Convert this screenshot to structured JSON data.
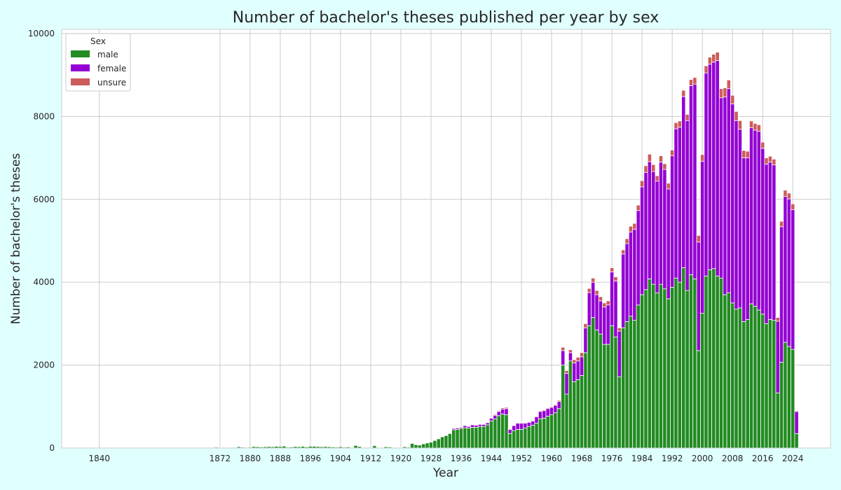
{
  "chart_data": {
    "type": "bar",
    "stacked": true,
    "title": "Number of bachelor's theses published per year by sex",
    "xlabel": "Year",
    "ylabel": "Number of bachelor's theses",
    "xlim": [
      1830,
      2034
    ],
    "ylim": [
      0,
      10100
    ],
    "x_ticks": [
      1840,
      1872,
      1880,
      1888,
      1896,
      1904,
      1912,
      1920,
      1928,
      1936,
      1944,
      1952,
      1960,
      1968,
      1976,
      1984,
      1992,
      2000,
      2008,
      2016,
      2024
    ],
    "y_ticks": [
      0,
      2000,
      4000,
      6000,
      8000,
      10000
    ],
    "grid": true,
    "legend": {
      "title": "Sex",
      "position": "top-left"
    },
    "colors": {
      "male": "#228b22",
      "female": "#9400d3",
      "unsure": "#cd5c5c",
      "background": "#e0ffff",
      "plot_background": "#ffffff",
      "grid": "#cccccc"
    },
    "categories": [
      1869,
      1870,
      1871,
      1872,
      1873,
      1874,
      1875,
      1876,
      1877,
      1878,
      1879,
      1880,
      1881,
      1882,
      1883,
      1884,
      1885,
      1886,
      1887,
      1888,
      1889,
      1890,
      1891,
      1892,
      1893,
      1894,
      1895,
      1896,
      1897,
      1898,
      1899,
      1900,
      1901,
      1902,
      1903,
      1904,
      1905,
      1906,
      1907,
      1908,
      1909,
      1910,
      1911,
      1912,
      1913,
      1914,
      1915,
      1916,
      1917,
      1918,
      1919,
      1920,
      1921,
      1922,
      1923,
      1924,
      1925,
      1926,
      1927,
      1928,
      1929,
      1930,
      1931,
      1932,
      1933,
      1934,
      1935,
      1936,
      1937,
      1938,
      1939,
      1940,
      1941,
      1942,
      1943,
      1944,
      1945,
      1946,
      1947,
      1948,
      1949,
      1950,
      1951,
      1952,
      1953,
      1954,
      1955,
      1956,
      1957,
      1958,
      1959,
      1960,
      1961,
      1962,
      1963,
      1964,
      1965,
      1966,
      1967,
      1968,
      1969,
      1970,
      1971,
      1972,
      1973,
      1974,
      1975,
      1976,
      1977,
      1978,
      1979,
      1980,
      1981,
      1982,
      1983,
      1984,
      1985,
      1986,
      1987,
      1988,
      1989,
      1990,
      1991,
      1992,
      1993,
      1994,
      1995,
      1996,
      1997,
      1998,
      1999,
      2000,
      2001,
      2002,
      2003,
      2004,
      2005,
      2006,
      2007,
      2008,
      2009,
      2010,
      2011,
      2012,
      2013,
      2014,
      2015,
      2016,
      2017,
      2018,
      2019,
      2020,
      2021,
      2022,
      2023,
      2024,
      2025
    ],
    "series": [
      {
        "name": "male",
        "values": [
          15,
          10,
          20,
          15,
          15,
          10,
          5,
          15,
          30,
          20,
          15,
          20,
          35,
          30,
          25,
          30,
          35,
          30,
          40,
          35,
          45,
          20,
          25,
          35,
          30,
          40,
          25,
          40,
          40,
          35,
          30,
          35,
          30,
          25,
          20,
          30,
          20,
          25,
          10,
          60,
          35,
          5,
          5,
          5,
          55,
          5,
          5,
          30,
          25,
          15,
          15,
          15,
          30,
          20,
          110,
          80,
          70,
          100,
          120,
          140,
          180,
          220,
          270,
          300,
          350,
          440,
          450,
          470,
          490,
          480,
          500,
          500,
          520,
          520,
          560,
          650,
          700,
          780,
          820,
          800,
          350,
          420,
          450,
          450,
          480,
          520,
          550,
          600,
          700,
          720,
          770,
          800,
          850,
          950,
          2000,
          1300,
          2100,
          1600,
          1650,
          1750,
          2300,
          2950,
          3150,
          2850,
          2750,
          2500,
          2500,
          2950,
          2680,
          1720,
          2900,
          3050,
          3180,
          3080,
          3450,
          3700,
          3820,
          4080,
          3950,
          3740,
          3950,
          3840,
          3600,
          3880,
          4100,
          4000,
          4350,
          3800,
          4180,
          4080,
          2350,
          3250,
          4150,
          4300,
          4330,
          4150,
          4100,
          3700,
          3750,
          3500,
          3350,
          3380,
          3050,
          3100,
          3480,
          3420,
          3330,
          3230,
          3000,
          3100,
          3080,
          1330,
          2070,
          2550,
          2450,
          2380,
          350
        ]
      },
      {
        "name": "female",
        "values": [
          0,
          0,
          0,
          0,
          0,
          0,
          0,
          0,
          0,
          0,
          0,
          0,
          0,
          0,
          0,
          0,
          0,
          0,
          0,
          0,
          0,
          0,
          0,
          0,
          0,
          0,
          0,
          0,
          0,
          0,
          0,
          0,
          0,
          0,
          0,
          0,
          0,
          0,
          0,
          0,
          0,
          0,
          0,
          0,
          0,
          0,
          0,
          0,
          0,
          0,
          0,
          0,
          0,
          0,
          0,
          0,
          0,
          0,
          0,
          0,
          0,
          0,
          0,
          0,
          10,
          30,
          30,
          30,
          50,
          40,
          60,
          50,
          50,
          50,
          50,
          70,
          90,
          100,
          120,
          150,
          100,
          120,
          150,
          150,
          120,
          100,
          100,
          150,
          180,
          180,
          180,
          180,
          180,
          170,
          350,
          500,
          200,
          450,
          450,
          450,
          600,
          800,
          850,
          850,
          800,
          900,
          950,
          1300,
          1350,
          1100,
          1780,
          1880,
          2030,
          2200,
          2280,
          2600,
          2830,
          2830,
          2720,
          2700,
          2950,
          2880,
          2650,
          3170,
          3600,
          3740,
          4130,
          4100,
          4560,
          4700,
          2620,
          3670,
          4900,
          4960,
          4980,
          5200,
          4350,
          4770,
          4920,
          4800,
          4550,
          4310,
          3950,
          3900,
          4250,
          4250,
          4310,
          4000,
          3850,
          3800,
          3750,
          1730,
          3270,
          3520,
          3560,
          3370,
          530
        ]
      },
      {
        "name": "unsure",
        "values": [
          0,
          0,
          0,
          0,
          0,
          0,
          0,
          0,
          0,
          0,
          0,
          0,
          0,
          0,
          0,
          0,
          0,
          0,
          0,
          0,
          0,
          0,
          0,
          0,
          0,
          0,
          0,
          0,
          0,
          0,
          0,
          0,
          0,
          0,
          0,
          0,
          0,
          0,
          0,
          0,
          0,
          0,
          0,
          0,
          0,
          0,
          0,
          0,
          0,
          0,
          0,
          0,
          0,
          0,
          0,
          0,
          0,
          0,
          0,
          0,
          0,
          0,
          0,
          0,
          0,
          0,
          0,
          10,
          10,
          10,
          10,
          10,
          10,
          10,
          10,
          10,
          20,
          20,
          30,
          30,
          10,
          10,
          10,
          10,
          10,
          10,
          10,
          20,
          20,
          20,
          20,
          20,
          20,
          30,
          80,
          70,
          70,
          80,
          90,
          100,
          100,
          100,
          100,
          100,
          100,
          100,
          100,
          100,
          100,
          80,
          100,
          120,
          140,
          140,
          130,
          150,
          160,
          180,
          170,
          130,
          150,
          140,
          140,
          140,
          150,
          150,
          150,
          150,
          150,
          160,
          160,
          160,
          170,
          170,
          190,
          200,
          220,
          220,
          210,
          210,
          220,
          210,
          180,
          160,
          160,
          160,
          160,
          150,
          150,
          140,
          140,
          90,
          130,
          150,
          140,
          140,
          20
        ]
      }
    ]
  }
}
